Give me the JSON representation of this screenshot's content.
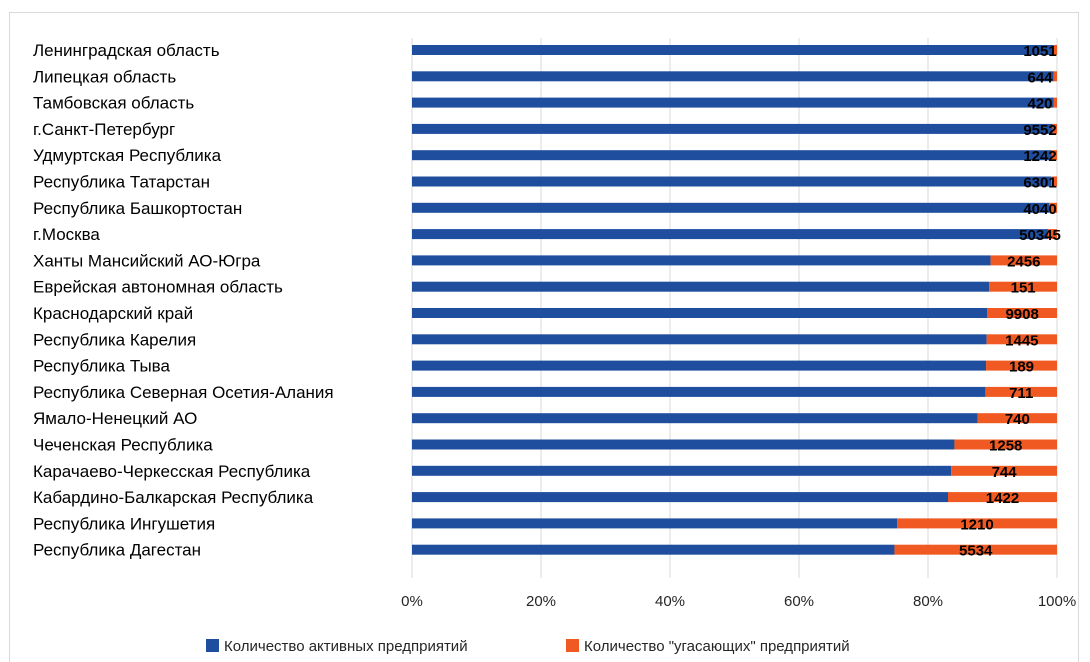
{
  "chart_data": {
    "type": "bar",
    "orientation": "horizontal",
    "stacked": "percent",
    "title": "",
    "xlabel": "",
    "ylabel": "",
    "xlim": [
      0,
      100
    ],
    "x_ticks": [
      "0%",
      "20%",
      "40%",
      "60%",
      "80%",
      "100%"
    ],
    "grid": true,
    "legend_position": "bottom",
    "categories": [
      "Ленинградская область",
      "Липецкая область",
      "Тамбовская область",
      "г.Санкт-Петербург",
      "Удмуртская Республика",
      "Республика Татарстан",
      "Республика Башкортостан",
      "г.Москва",
      "Ханты Мансийский АО-Югра",
      "Еврейская автономная область",
      "Краснодарский край",
      "Республика Карелия",
      "Республика Тыва",
      "Республика Северная Осетия-Алания",
      "Ямало-Ненецкий АО",
      "Чеченская Республика",
      "Карачаево-Черкесская Республика",
      "Кабардино-Балкарская Республика",
      "Республика Ингушетия",
      "Республика Дагестан"
    ],
    "series": [
      {
        "name": "Количество активных предприятий",
        "color": "#1f4e9e",
        "percent": [
          99.5,
          99.5,
          99.5,
          99.3,
          99.2,
          99.1,
          98.8,
          98.6,
          89.7,
          89.5,
          89.2,
          89.1,
          89.0,
          88.9,
          87.7,
          84.1,
          83.6,
          83.1,
          75.2,
          74.8
        ]
      },
      {
        "name": "Количество \"угасающих\" предприятий",
        "color": "#f05a22",
        "percent": [
          0.5,
          0.5,
          0.5,
          0.7,
          0.8,
          0.9,
          1.2,
          1.4,
          10.3,
          10.5,
          10.8,
          10.9,
          11.0,
          11.1,
          12.3,
          15.9,
          16.4,
          16.9,
          24.8,
          25.2
        ],
        "labels": [
          "1051",
          "644",
          "420",
          "9552",
          "1242",
          "6301",
          "4040",
          "50345",
          "2456",
          "151",
          "9908",
          "1445",
          "189",
          "711",
          "740",
          "1258",
          "744",
          "1422",
          "1210",
          "5534"
        ]
      }
    ],
    "colors": {
      "gridline": "#d9d9d9",
      "frame": "#d9d9d9"
    }
  }
}
